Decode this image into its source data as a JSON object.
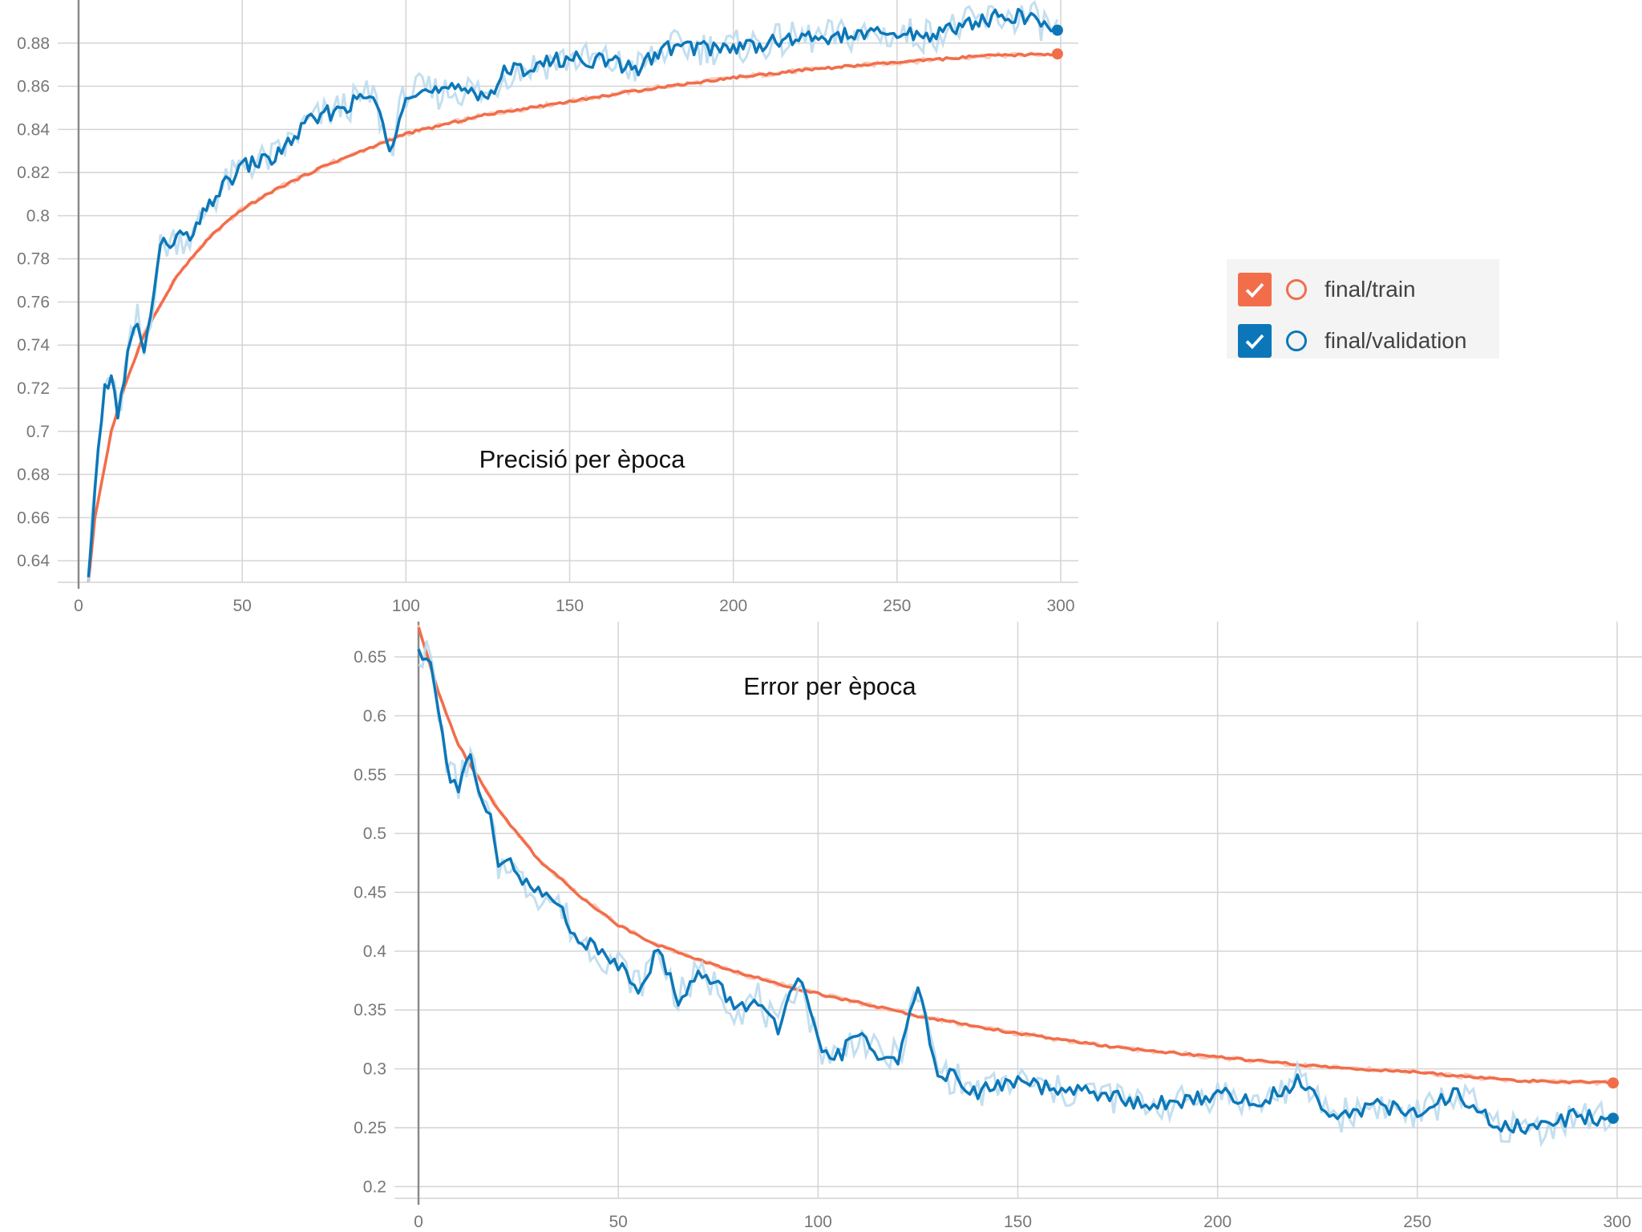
{
  "legend": {
    "items": [
      {
        "label": "final/train",
        "color": "#f26d4a",
        "checked": true,
        "icon": "check-icon"
      },
      {
        "label": "final/validation",
        "color": "#0c77b8",
        "checked": true,
        "icon": "check-icon"
      }
    ]
  },
  "colors": {
    "train": "#f26d4a",
    "validation": "#0c77b8",
    "validation_raw": "#bcdcee",
    "grid": "#d4d4d4"
  },
  "chart_data": [
    {
      "type": "line",
      "title": "Precisió per època",
      "xlabel": "",
      "ylabel": "",
      "xlim": [
        0,
        300
      ],
      "ylim": [
        0.63,
        0.9
      ],
      "xticks": [
        0,
        50,
        100,
        150,
        200,
        250,
        300
      ],
      "yticks": [
        0.64,
        0.66,
        0.68,
        0.7,
        0.72,
        0.74,
        0.76,
        0.78,
        0.8,
        0.82,
        0.84,
        0.86,
        0.88
      ],
      "ytick_labels": [
        "0.64",
        "0.66",
        "0.68",
        "0.7",
        "0.72",
        "0.74",
        "0.76",
        "0.78",
        "0.8",
        "0.82",
        "0.84",
        "0.86",
        "0.88"
      ],
      "grid": true,
      "legend_position": "right",
      "series": [
        {
          "name": "final/train",
          "x": [
            3,
            5,
            10,
            15,
            20,
            30,
            40,
            50,
            60,
            75,
            90,
            100,
            125,
            150,
            175,
            200,
            225,
            250,
            275,
            299
          ],
          "y": [
            0.63,
            0.66,
            0.7,
            0.725,
            0.745,
            0.772,
            0.79,
            0.803,
            0.812,
            0.823,
            0.832,
            0.838,
            0.847,
            0.853,
            0.859,
            0.864,
            0.868,
            0.871,
            0.874,
            0.875
          ]
        },
        {
          "name": "final/validation",
          "x": [
            3,
            5,
            8,
            10,
            12,
            15,
            18,
            20,
            25,
            30,
            35,
            40,
            50,
            60,
            70,
            80,
            90,
            95,
            100,
            110,
            120,
            125,
            130,
            140,
            150,
            160,
            170,
            180,
            200,
            220,
            240,
            260,
            280,
            290,
            299
          ],
          "y": [
            0.63,
            0.675,
            0.72,
            0.727,
            0.705,
            0.735,
            0.752,
            0.735,
            0.785,
            0.79,
            0.79,
            0.806,
            0.823,
            0.827,
            0.843,
            0.85,
            0.856,
            0.83,
            0.858,
            0.857,
            0.859,
            0.855,
            0.866,
            0.87,
            0.873,
            0.872,
            0.868,
            0.878,
            0.878,
            0.882,
            0.884,
            0.884,
            0.892,
            0.892,
            0.886
          ]
        }
      ]
    },
    {
      "type": "line",
      "title": "Error per època",
      "xlabel": "",
      "ylabel": "",
      "xlim": [
        0,
        300
      ],
      "ylim": [
        0.19,
        0.68
      ],
      "xticks": [
        0,
        50,
        100,
        150,
        200,
        250,
        300
      ],
      "yticks": [
        0.2,
        0.25,
        0.3,
        0.35,
        0.4,
        0.45,
        0.5,
        0.55,
        0.6,
        0.65
      ],
      "ytick_labels": [
        "0.2",
        "0.25",
        "0.3",
        "0.35",
        "0.4",
        "0.45",
        "0.5",
        "0.55",
        "0.6",
        "0.65"
      ],
      "grid": true,
      "series": [
        {
          "name": "final/train",
          "x": [
            0,
            5,
            10,
            20,
            30,
            40,
            50,
            60,
            75,
            90,
            100,
            125,
            150,
            175,
            200,
            225,
            250,
            275,
            299
          ],
          "y": [
            0.675,
            0.62,
            0.575,
            0.52,
            0.478,
            0.448,
            0.422,
            0.405,
            0.387,
            0.372,
            0.364,
            0.345,
            0.33,
            0.318,
            0.31,
            0.302,
            0.297,
            0.29,
            0.288
          ]
        },
        {
          "name": "final/validation",
          "x": [
            0,
            3,
            5,
            8,
            10,
            13,
            15,
            18,
            20,
            23,
            25,
            30,
            35,
            40,
            45,
            50,
            55,
            60,
            65,
            70,
            75,
            80,
            85,
            90,
            95,
            100,
            105,
            110,
            115,
            120,
            125,
            130,
            140,
            150,
            160,
            170,
            180,
            190,
            200,
            210,
            220,
            230,
            240,
            250,
            260,
            270,
            280,
            290,
            299
          ],
          "y": [
            0.655,
            0.65,
            0.6,
            0.55,
            0.54,
            0.57,
            0.53,
            0.51,
            0.47,
            0.48,
            0.46,
            0.45,
            0.44,
            0.41,
            0.4,
            0.39,
            0.37,
            0.4,
            0.36,
            0.38,
            0.37,
            0.35,
            0.36,
            0.33,
            0.38,
            0.32,
            0.31,
            0.33,
            0.31,
            0.31,
            0.365,
            0.3,
            0.28,
            0.29,
            0.28,
            0.28,
            0.27,
            0.27,
            0.28,
            0.27,
            0.29,
            0.26,
            0.27,
            0.26,
            0.28,
            0.25,
            0.25,
            0.26,
            0.258
          ]
        }
      ]
    }
  ]
}
